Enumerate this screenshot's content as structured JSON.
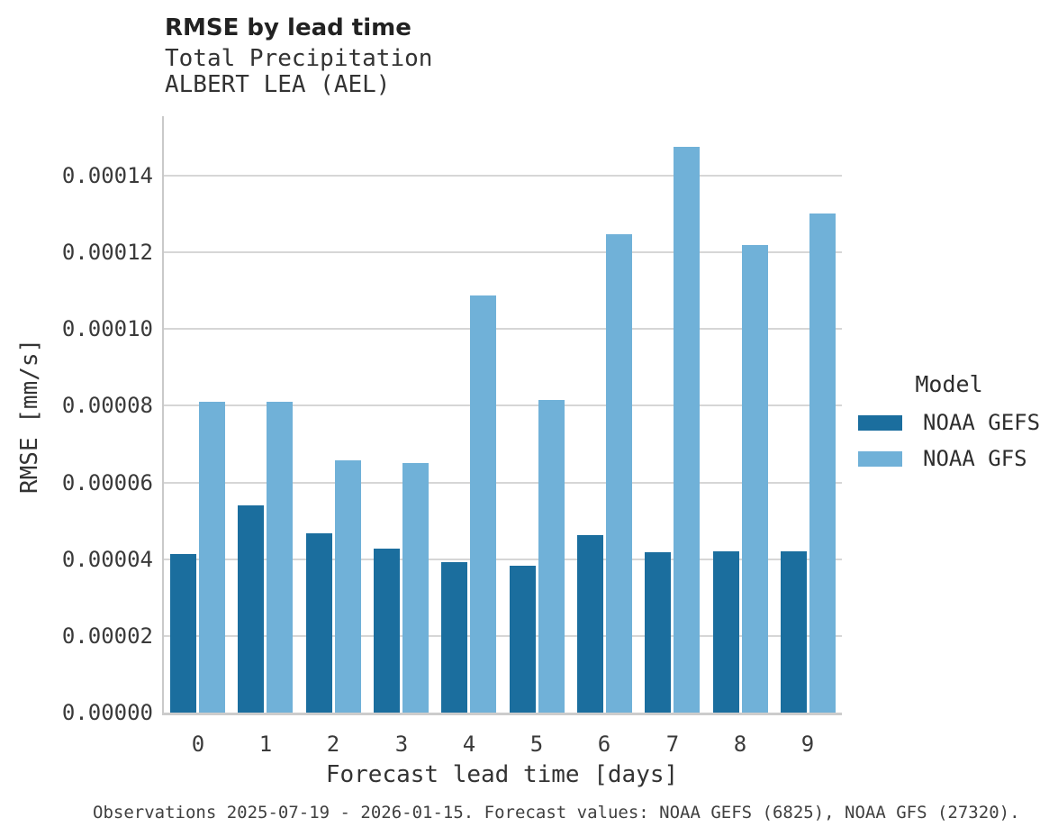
{
  "title": "RMSE by lead time",
  "subtitle_lines": [
    "Total Precipitation",
    "ALBERT LEA (AEL)"
  ],
  "caption": "Observations 2025-07-19 - 2026-01-15. Forecast values: NOAA GEFS (6825), NOAA GFS (27320).",
  "legend": {
    "title": "Model",
    "entries": [
      {
        "label": "NOAA GEFS",
        "color": "#1b6e9e"
      },
      {
        "label": "NOAA GFS",
        "color": "#70b1d8"
      }
    ]
  },
  "colors": {
    "gefs_bar": "#1b6e9e",
    "gfs_bar": "#70b1d8",
    "gridline": "#d6d6d6",
    "spine": "#c9c9c9",
    "text": "#2e2e2e"
  },
  "chart_data": {
    "type": "bar",
    "title": "RMSE by lead time",
    "subtitle": [
      "Total Precipitation",
      "ALBERT LEA (AEL)"
    ],
    "categories": [
      "0",
      "1",
      "2",
      "3",
      "4",
      "5",
      "6",
      "7",
      "8",
      "9"
    ],
    "series": [
      {
        "name": "NOAA GEFS",
        "color": "#1b6e9e",
        "values": [
          4.13e-05,
          5.41e-05,
          4.68e-05,
          4.28e-05,
          3.92e-05,
          3.82e-05,
          4.62e-05,
          4.17e-05,
          4.2e-05,
          4.2e-05
        ]
      },
      {
        "name": "NOAA GFS",
        "color": "#70b1d8",
        "values": [
          8.11e-05,
          8.11e-05,
          6.58e-05,
          6.51e-05,
          0.0001088,
          8.16e-05,
          0.0001247,
          0.0001475,
          0.0001218,
          0.0001301
        ]
      }
    ],
    "xlabel": "Forecast lead time [days]",
    "ylabel": "RMSE [mm/s]",
    "ylim": [
      0,
      0.0001555
    ],
    "yticks": [
      0.0,
      2e-05,
      4e-05,
      6e-05,
      8e-05,
      0.0001,
      0.00012,
      0.00014
    ],
    "ytick_labels": [
      "0.00000",
      "0.00002",
      "0.00004",
      "0.00006",
      "0.00008",
      "0.00010",
      "0.00012",
      "0.00014"
    ],
    "grid": "horizontal",
    "legend_position": "right",
    "legend_title": "Model"
  }
}
